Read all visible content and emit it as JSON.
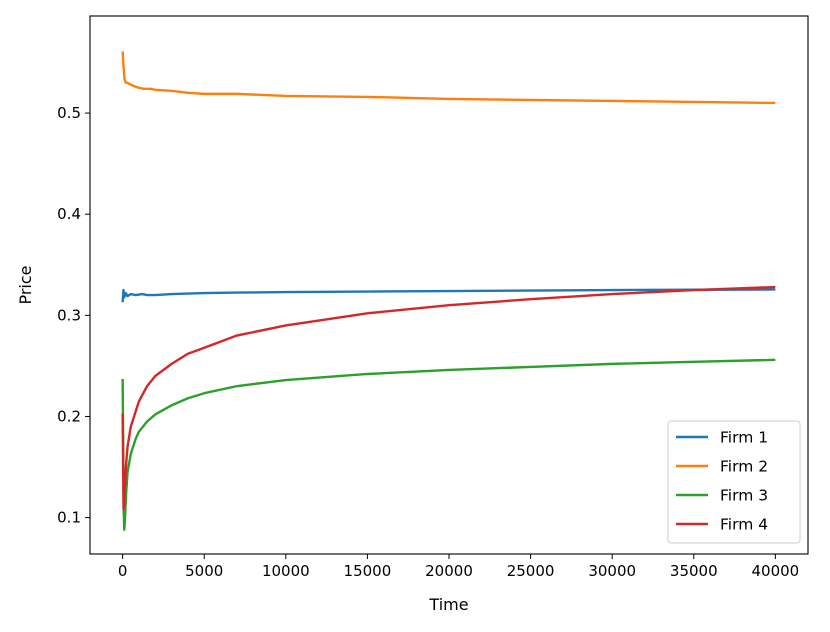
{
  "chart_data": {
    "type": "line",
    "title": "",
    "xlabel": "Time",
    "ylabel": "Price",
    "xlim": [
      -2000,
      42000
    ],
    "ylim": [
      0.064,
      0.596
    ],
    "xticks": [
      0,
      5000,
      10000,
      15000,
      20000,
      25000,
      30000,
      35000,
      40000
    ],
    "yticks": [
      0.1,
      0.2,
      0.3,
      0.4,
      0.5
    ],
    "grid": false,
    "legend_position": "lower-right",
    "series": [
      {
        "name": "Firm 1",
        "color": "#1f77b4",
        "x": [
          0,
          50,
          100,
          200,
          300,
          500,
          800,
          1200,
          1500,
          2000,
          2500,
          3000,
          4000,
          5000,
          7000,
          10000,
          15000,
          20000,
          25000,
          30000,
          35000,
          40000
        ],
        "y": [
          0.313,
          0.325,
          0.318,
          0.322,
          0.319,
          0.321,
          0.32,
          0.321,
          0.32,
          0.32,
          0.3205,
          0.321,
          0.3215,
          0.322,
          0.3225,
          0.323,
          0.3235,
          0.324,
          0.3245,
          0.325,
          0.3253,
          0.3256
        ]
      },
      {
        "name": "Firm 2",
        "color": "#ff7f0e",
        "x": [
          0,
          60,
          120,
          200,
          300,
          500,
          800,
          1000,
          1300,
          1700,
          2000,
          3000,
          4000,
          5000,
          7000,
          10000,
          15000,
          20000,
          25000,
          30000,
          35000,
          40000
        ],
        "y": [
          0.561,
          0.545,
          0.533,
          0.53,
          0.53,
          0.528,
          0.526,
          0.525,
          0.524,
          0.524,
          0.523,
          0.522,
          0.52,
          0.519,
          0.519,
          0.517,
          0.516,
          0.514,
          0.513,
          0.512,
          0.511,
          0.51
        ]
      },
      {
        "name": "Firm 3",
        "color": "#2ca02c",
        "x": [
          0,
          30,
          60,
          100,
          150,
          200,
          300,
          500,
          800,
          1000,
          1500,
          2000,
          3000,
          4000,
          5000,
          7000,
          10000,
          15000,
          20000,
          25000,
          30000,
          35000,
          40000
        ],
        "y": [
          0.237,
          0.18,
          0.11,
          0.088,
          0.1,
          0.12,
          0.145,
          0.163,
          0.178,
          0.185,
          0.195,
          0.202,
          0.211,
          0.218,
          0.223,
          0.23,
          0.236,
          0.242,
          0.246,
          0.249,
          0.252,
          0.254,
          0.256
        ]
      },
      {
        "name": "Firm 4",
        "color": "#d62728",
        "x": [
          0,
          30,
          60,
          100,
          150,
          200,
          300,
          500,
          800,
          1000,
          1500,
          2000,
          3000,
          4000,
          5000,
          7000,
          10000,
          15000,
          20000,
          25000,
          30000,
          35000,
          40000
        ],
        "y": [
          0.203,
          0.15,
          0.108,
          0.115,
          0.135,
          0.15,
          0.17,
          0.19,
          0.205,
          0.215,
          0.23,
          0.24,
          0.252,
          0.262,
          0.268,
          0.28,
          0.29,
          0.302,
          0.31,
          0.316,
          0.321,
          0.325,
          0.328
        ]
      }
    ]
  }
}
